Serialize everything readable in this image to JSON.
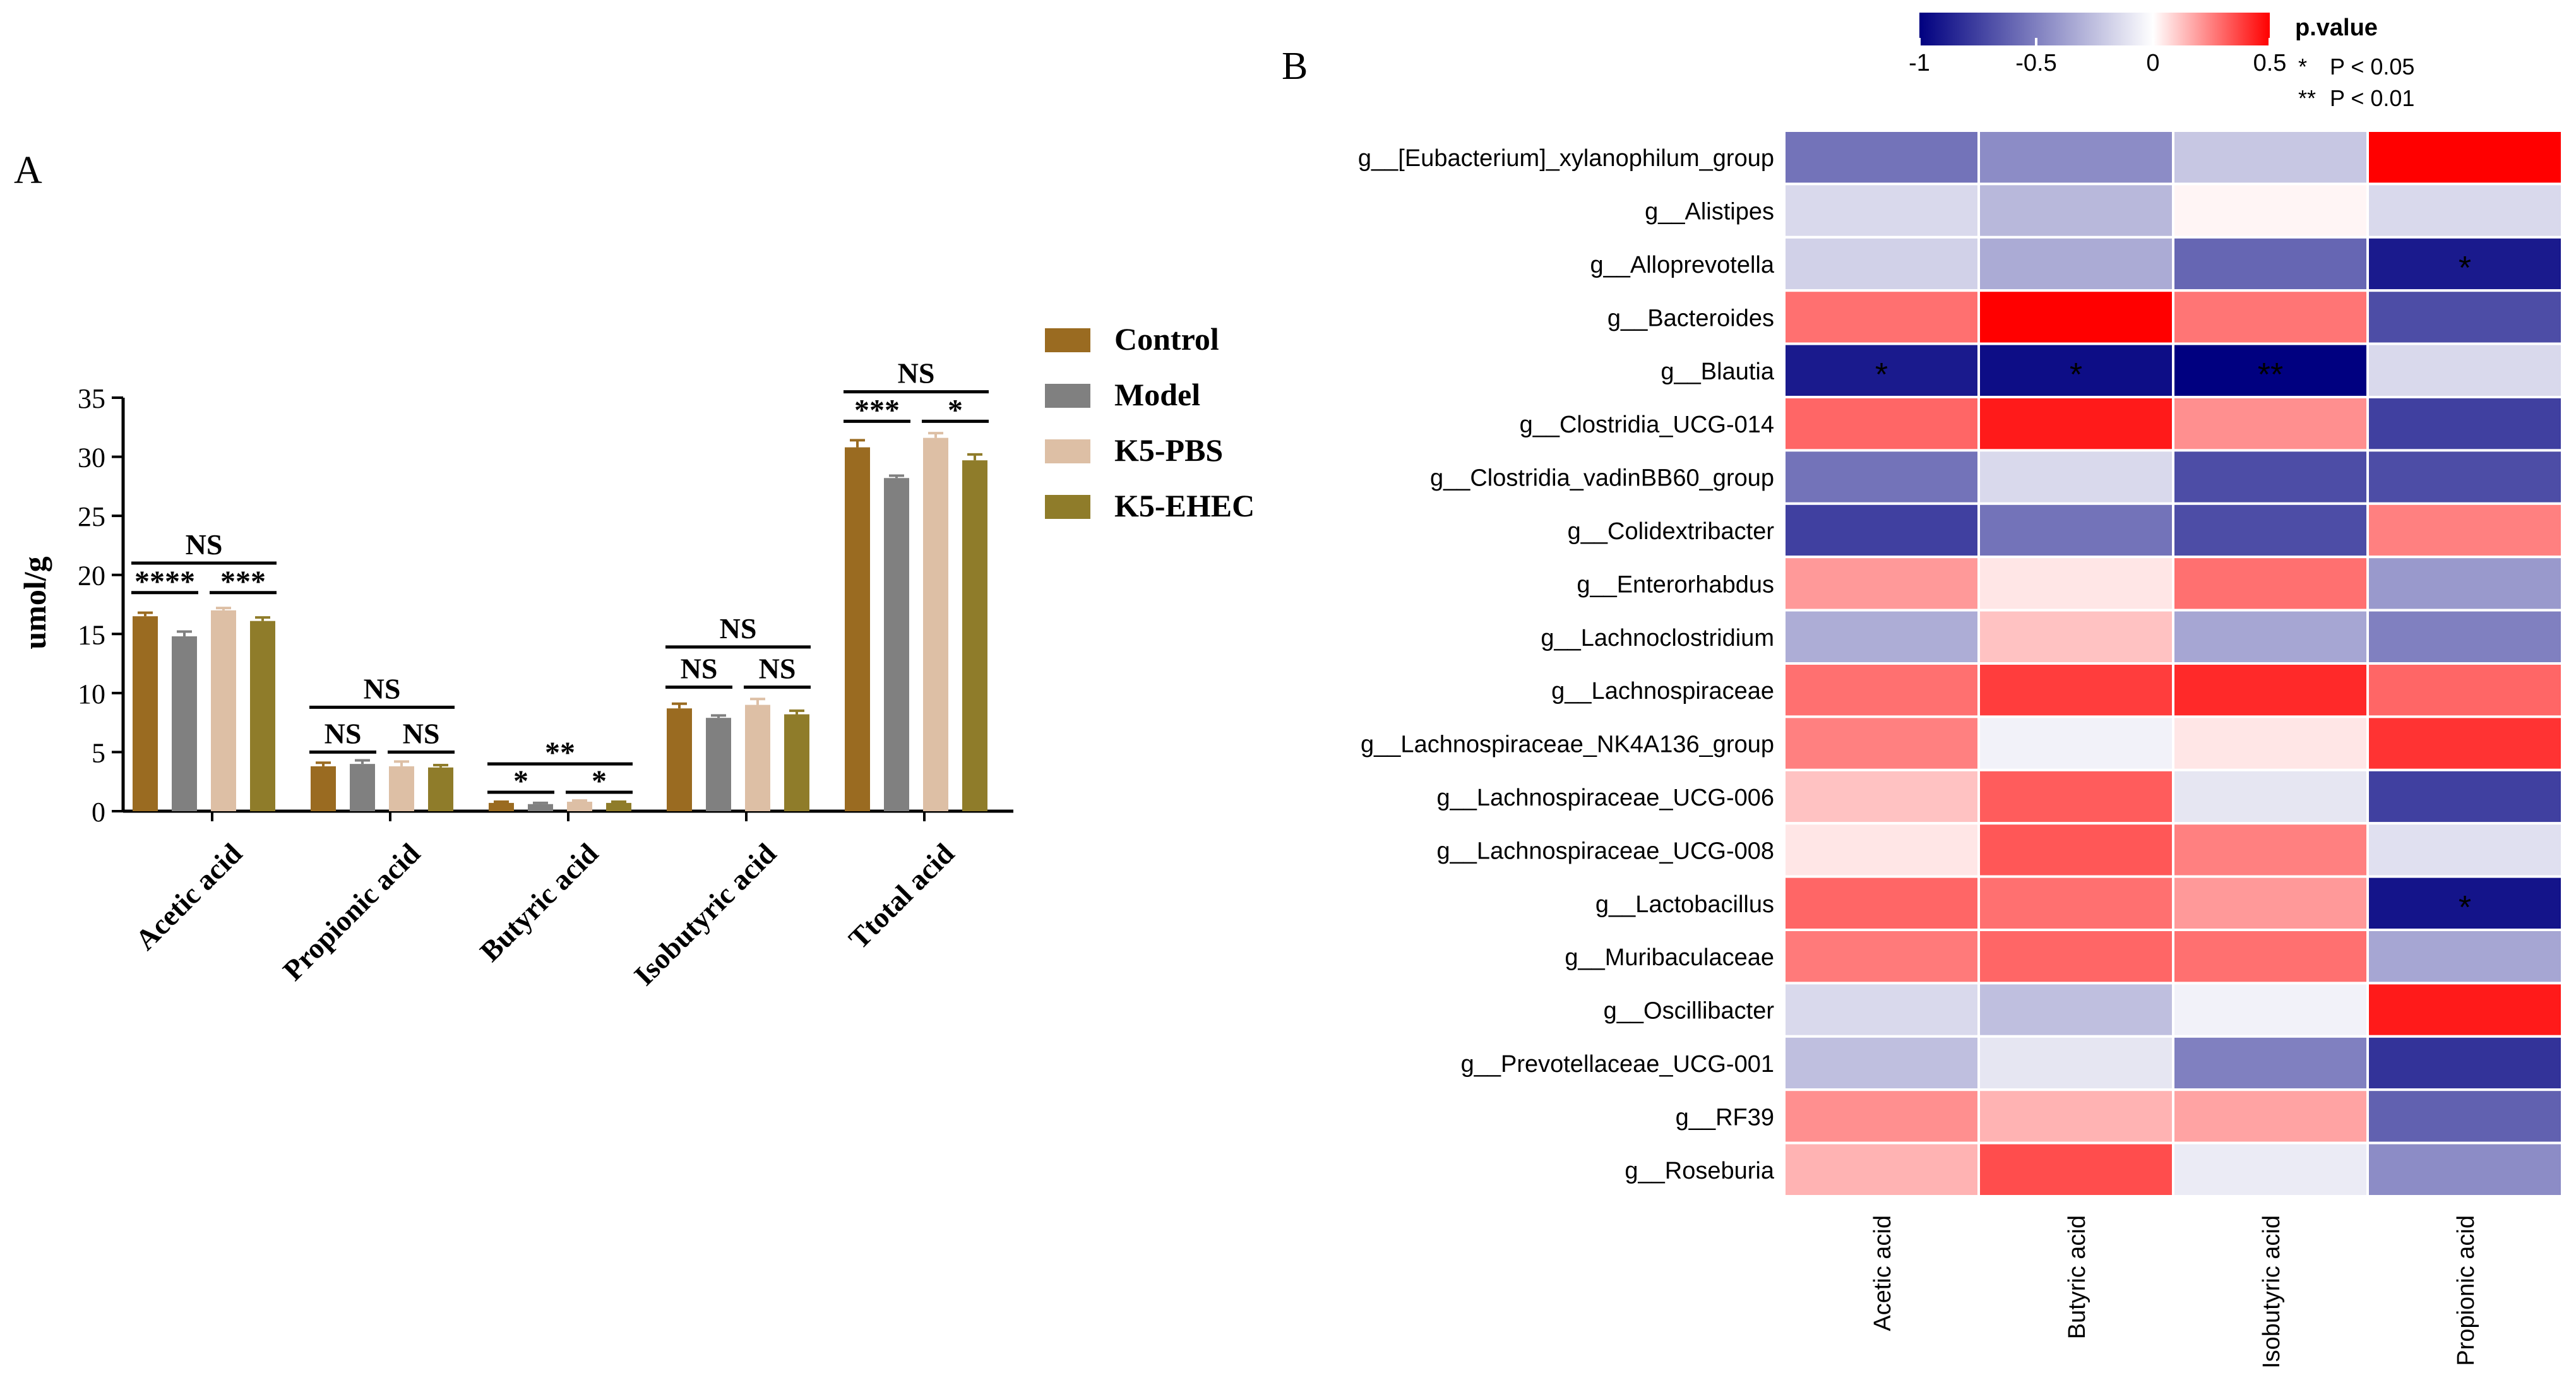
{
  "panels": {
    "A": "A",
    "B": "B"
  },
  "chart_data": [
    {
      "type": "bar",
      "panel": "A",
      "ylabel": "umol/g",
      "ylim": [
        0,
        35
      ],
      "yticks": [
        0,
        5,
        10,
        15,
        20,
        25,
        30,
        35
      ],
      "categories": [
        "Acetic acid",
        "Propionic acid",
        "Butyric acid",
        "Isobutyric acid",
        "Ttotal acid"
      ],
      "series": [
        {
          "name": "Control",
          "color": "#9a6b21",
          "values": [
            16.5,
            3.8,
            0.7,
            8.7,
            30.8
          ],
          "errors": [
            0.3,
            0.3,
            0.1,
            0.4,
            0.6
          ]
        },
        {
          "name": "Model",
          "color": "#808080",
          "values": [
            14.8,
            4.0,
            0.6,
            7.9,
            28.2
          ],
          "errors": [
            0.4,
            0.3,
            0.1,
            0.2,
            0.2
          ]
        },
        {
          "name": "K5-PBS",
          "color": "#ddbfa5",
          "values": [
            17.0,
            3.8,
            0.8,
            9.0,
            31.6
          ],
          "errors": [
            0.2,
            0.4,
            0.1,
            0.5,
            0.4
          ]
        },
        {
          "name": "K5-EHEC",
          "color": "#8f7c2a",
          "values": [
            16.1,
            3.7,
            0.7,
            8.2,
            29.7
          ],
          "errors": [
            0.3,
            0.2,
            0.1,
            0.3,
            0.5
          ]
        }
      ],
      "legend_position": "right",
      "significance": [
        {
          "category": 0,
          "from": 0,
          "to": 1,
          "label": "****",
          "y": 18.5
        },
        {
          "category": 0,
          "from": 2,
          "to": 3,
          "label": "***",
          "y": 18.5
        },
        {
          "category": 0,
          "from": 0,
          "to": 3,
          "label": "NS",
          "y": 21.0
        },
        {
          "category": 1,
          "from": 0,
          "to": 1,
          "label": "NS",
          "y": 5.0
        },
        {
          "category": 1,
          "from": 2,
          "to": 3,
          "label": "NS",
          "y": 5.0
        },
        {
          "category": 1,
          "from": 0,
          "to": 3,
          "label": "NS",
          "y": 8.8
        },
        {
          "category": 2,
          "from": 0,
          "to": 1,
          "label": "*",
          "y": 1.6
        },
        {
          "category": 2,
          "from": 2,
          "to": 3,
          "label": "*",
          "y": 1.6
        },
        {
          "category": 2,
          "from": 0,
          "to": 3,
          "label": "**",
          "y": 4.0
        },
        {
          "category": 3,
          "from": 0,
          "to": 1,
          "label": "NS",
          "y": 10.5
        },
        {
          "category": 3,
          "from": 2,
          "to": 3,
          "label": "NS",
          "y": 10.5
        },
        {
          "category": 3,
          "from": 0,
          "to": 3,
          "label": "NS",
          "y": 13.9
        },
        {
          "category": 4,
          "from": 0,
          "to": 1,
          "label": "***",
          "y": 33.0
        },
        {
          "category": 4,
          "from": 2,
          "to": 3,
          "label": "*",
          "y": 33.0
        },
        {
          "category": 4,
          "from": 0,
          "to": 3,
          "label": "NS",
          "y": 35.5
        }
      ]
    },
    {
      "type": "heatmap",
      "panel": "B",
      "rows": [
        "g__[Eubacterium]_xylanophilum_group",
        "g__Alistipes",
        "g__Alloprevotella",
        "g__Bacteroides",
        "g__Blautia",
        "g__Clostridia_UCG-014",
        "g__Clostridia_vadinBB60_group",
        "g__Colidextribacter",
        "g__Enterorhabdus",
        "g__Lachnoclostridium",
        "g__Lachnospiraceae",
        "g__Lachnospiraceae_NK4A136_group",
        "g__Lachnospiraceae_UCG-006",
        "g__Lachnospiraceae_UCG-008",
        "g__Lactobacillus",
        "g__Muribaculaceae",
        "g__Oscillibacter",
        "g__Prevotellaceae_UCG-001",
        "g__RF39",
        "g__Roseburia"
      ],
      "columns": [
        "Acetic acid",
        "Butyric acid",
        "Isobutyric acid",
        "Propionic acid"
      ],
      "values": [
        [
          -0.55,
          -0.45,
          -0.22,
          0.62
        ],
        [
          -0.15,
          -0.28,
          0.02,
          -0.15
        ],
        [
          -0.18,
          -0.33,
          -0.6,
          -0.9
        ],
        [
          0.28,
          0.6,
          0.27,
          -0.7
        ],
        [
          -0.9,
          -0.95,
          -1.0,
          -0.15
        ],
        [
          0.3,
          0.45,
          0.22,
          -0.75
        ],
        [
          -0.55,
          -0.15,
          -0.7,
          -0.7
        ],
        [
          -0.75,
          -0.55,
          -0.7,
          0.25
        ],
        [
          0.2,
          0.05,
          0.28,
          -0.4
        ],
        [
          -0.32,
          0.12,
          -0.35,
          -0.5
        ],
        [
          0.28,
          0.38,
          0.42,
          0.3
        ],
        [
          0.25,
          -0.05,
          0.05,
          0.4
        ],
        [
          0.12,
          0.32,
          -0.1,
          -0.75
        ],
        [
          0.05,
          0.33,
          0.25,
          -0.12
        ],
        [
          0.3,
          0.28,
          0.2,
          -0.92
        ],
        [
          0.26,
          0.3,
          0.28,
          -0.35
        ],
        [
          -0.15,
          -0.25,
          -0.05,
          0.45
        ],
        [
          -0.25,
          -0.1,
          -0.5,
          -0.8
        ],
        [
          0.22,
          0.15,
          0.18,
          -0.62
        ],
        [
          0.15,
          0.35,
          -0.08,
          -0.45
        ]
      ],
      "stars": [
        {
          "row": 2,
          "col": 3,
          "label": "*"
        },
        {
          "row": 4,
          "col": 0,
          "label": "*"
        },
        {
          "row": 4,
          "col": 1,
          "label": "*"
        },
        {
          "row": 4,
          "col": 2,
          "label": "**"
        },
        {
          "row": 14,
          "col": 3,
          "label": "*"
        }
      ],
      "colorbar": {
        "title": "p.value",
        "range": [
          -1,
          0.5
        ],
        "ticks": [
          "-1",
          "-0.5",
          "0",
          "0.5"
        ],
        "colors": {
          "negative": "#000080",
          "zero": "#ffffff",
          "positive": "#ff0000"
        }
      },
      "key": [
        {
          "symbol": "*",
          "text": "P < 0.05"
        },
        {
          "symbol": "**",
          "text": "P < 0.01"
        }
      ]
    }
  ]
}
